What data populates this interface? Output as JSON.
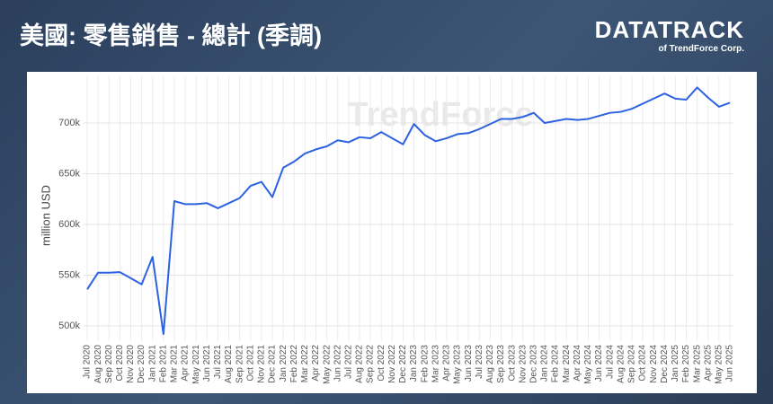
{
  "header": {
    "title": "美國: 零售銷售 - 總計 (季調)",
    "logo": "DATATRACK",
    "logo_sub": "of TrendForce Corp."
  },
  "chart_data": {
    "type": "line",
    "y_label": "million USD",
    "watermark": "TrendForce",
    "categories": [
      "Jul 2020",
      "Aug 2020",
      "Sep 2020",
      "Oct 2020",
      "Nov 2020",
      "Dec 2020",
      "Jan 2021",
      "Feb 2021",
      "Mar 2021",
      "Apr 2021",
      "May 2021",
      "Jun 2021",
      "Jul 2021",
      "Aug 2021",
      "Sep 2021",
      "Oct 2021",
      "Nov 2021",
      "Dec 2021",
      "Jan 2022",
      "Feb 2022",
      "Mar 2022",
      "Apr 2022",
      "May 2022",
      "Jun 2022",
      "Jul 2022",
      "Aug 2022",
      "Sep 2022",
      "Oct 2022",
      "Nov 2022",
      "Dec 2022",
      "Jan 2023",
      "Feb 2023",
      "Mar 2023",
      "Apr 2023",
      "May 2023",
      "Jun 2023",
      "Jul 2023",
      "Aug 2023",
      "Sep 2023",
      "Oct 2023",
      "Nov 2023",
      "Dec 2023",
      "Jan 2024",
      "Feb 2024",
      "Mar 2024",
      "Apr 2024",
      "May 2024",
      "Jun 2024",
      "Jul 2024",
      "Aug 2024",
      "Sep 2024",
      "Oct 2024",
      "Nov 2024",
      "Dec 2024",
      "Jan 2025",
      "Feb 2025",
      "Mar 2025",
      "Apr 2025",
      "May 2025",
      "Jun 2025"
    ],
    "values": [
      536000,
      552500,
      552500,
      553000,
      547000,
      541000,
      568000,
      492000,
      623000,
      620000,
      620000,
      621000,
      616000,
      621000,
      626000,
      638000,
      642000,
      627000,
      656000,
      662000,
      670000,
      674000,
      677000,
      683000,
      681000,
      686000,
      685000,
      691000,
      685000,
      679000,
      699000,
      688000,
      682000,
      685000,
      689000,
      690000,
      694000,
      699000,
      704000,
      704000,
      706000,
      710000,
      700000,
      702000,
      704000,
      703000,
      704000,
      707000,
      710000,
      711000,
      714000,
      719000,
      724000,
      729000,
      724000,
      723000,
      735000,
      725000,
      716000,
      720000
    ],
    "color": "#2d62e0",
    "ylim": [
      485000,
      746000
    ],
    "yticks": [
      {
        "value": 500000,
        "label": "500k"
      },
      {
        "value": 550000,
        "label": "550k"
      },
      {
        "value": 600000,
        "label": "600k"
      },
      {
        "value": 650000,
        "label": "650k"
      },
      {
        "value": 700000,
        "label": "700k"
      }
    ],
    "grid": true
  }
}
